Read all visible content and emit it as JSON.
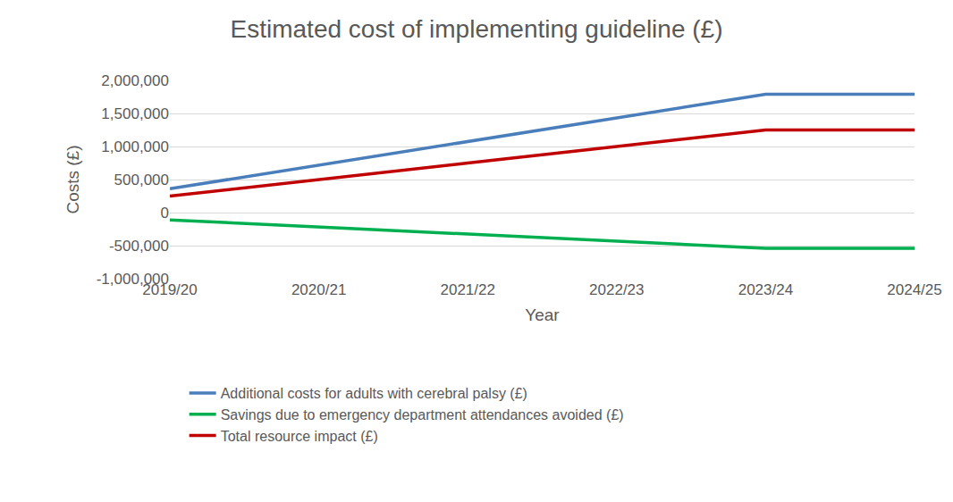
{
  "chart_data": {
    "type": "line",
    "title": "Estimated cost of implementing guideline (£)",
    "x_label": "Year",
    "y_label": "Costs (£)",
    "categories": [
      "2019/20",
      "2020/21",
      "2021/22",
      "2022/23",
      "2023/24",
      "2024/25"
    ],
    "series": [
      {
        "name": "Additional costs for adults with cerebral palsy (£)",
        "color": "#4a7ebb",
        "values": [
          360000,
          720000,
          1075000,
          1430000,
          1790000,
          1790000
        ]
      },
      {
        "name": "Savings due to emergency department attendances avoided (£)",
        "color": "#00b050",
        "values": [
          -110000,
          -215000,
          -325000,
          -430000,
          -540000,
          -540000
        ]
      },
      {
        "name": "Total resource impact (£)",
        "color": "#c00000",
        "values": [
          250000,
          505000,
          750000,
          1000000,
          1250000,
          1250000
        ]
      }
    ],
    "ylim": [
      -1000000,
      2000000
    ],
    "yticks": [
      {
        "value": -1000000,
        "label": "-1,000,000"
      },
      {
        "value": -500000,
        "label": "-500,000"
      },
      0,
      {
        "value": 500000,
        "label": "500,000"
      },
      {
        "value": 1000000,
        "label": "1,000,000"
      },
      {
        "value": 1500000,
        "label": "1,500,000"
      },
      {
        "value": 2000000,
        "label": "2,000,000"
      }
    ],
    "grid": true,
    "legend": "bottom"
  }
}
